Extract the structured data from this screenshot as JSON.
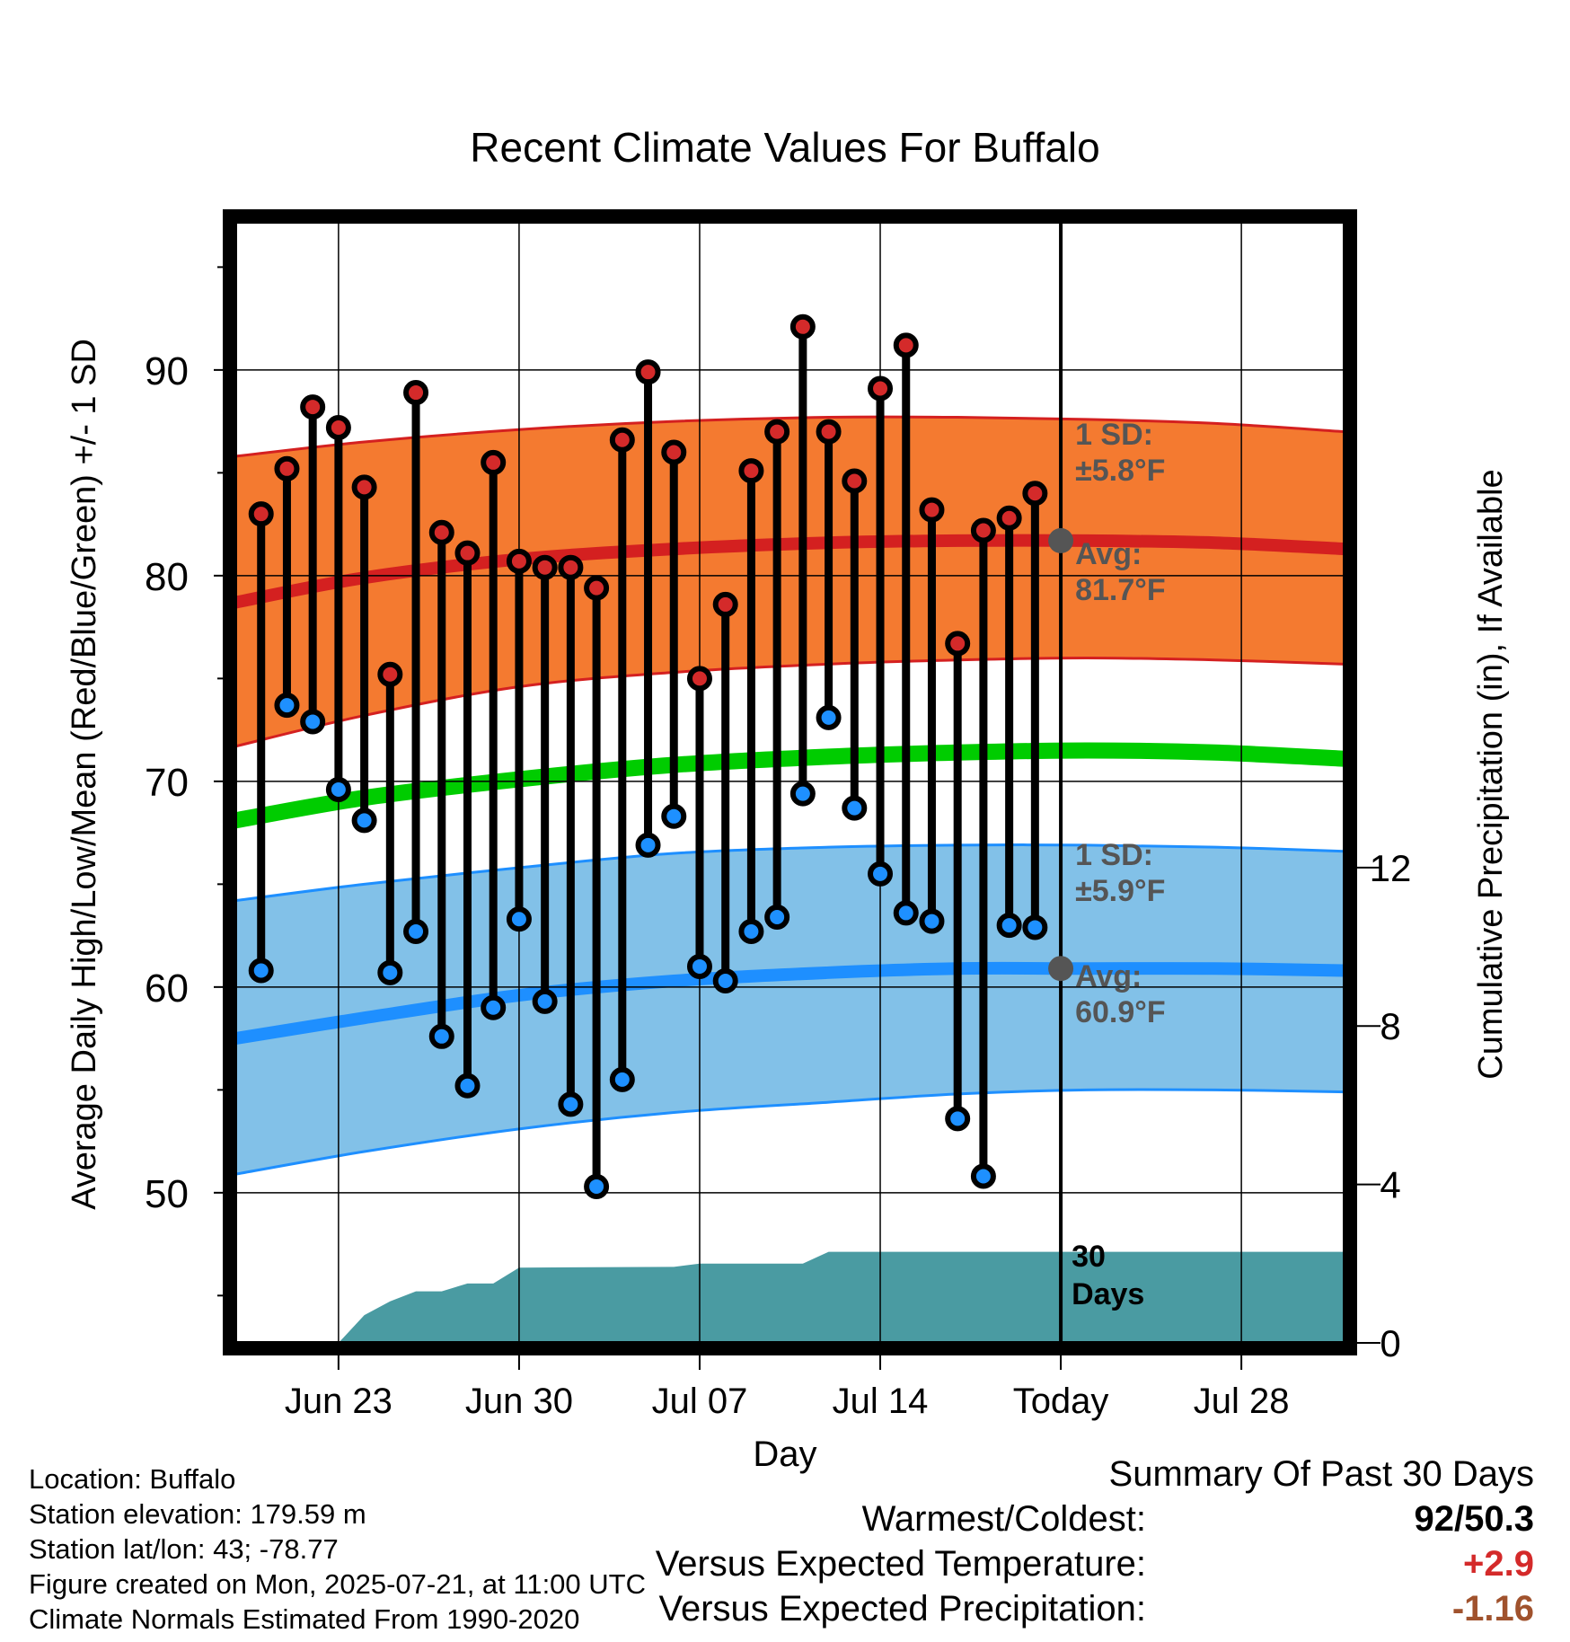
{
  "chart_data": {
    "type": "line",
    "title": "Recent Climate Values For Buffalo",
    "xlabel": "Day",
    "ylabel": "Average Daily High/Low/Mean (Red/Blue/Green) +/- 1 SD",
    "y2label": "Cumulative Precipitation (in), If Available",
    "ylim": [
      42.7,
      97.2
    ],
    "y2lim": [
      0,
      28.3
    ],
    "yticks": [
      "50",
      "60",
      "70",
      "80",
      "90"
    ],
    "y2ticks": [
      "0",
      "4",
      "8",
      "12"
    ],
    "xlim": [
      "2025-06-19",
      "2025-08-01"
    ],
    "xticks": [
      {
        "date": "2025-06-23",
        "label": "Jun 23"
      },
      {
        "date": "2025-06-30",
        "label": "Jun 30"
      },
      {
        "date": "2025-07-07",
        "label": "Jul 07"
      },
      {
        "date": "2025-07-14",
        "label": "Jul 14"
      },
      {
        "date": "2025-07-21",
        "label": "Today"
      },
      {
        "date": "2025-07-28",
        "label": "Jul 28"
      }
    ],
    "grid": true,
    "today": "2025-07-21",
    "colors": {
      "high_band": "#f47a30",
      "high_avg": "#d42020",
      "low_band": "#82c1e8",
      "low_avg": "#1e8fff",
      "mean": "#00cc00",
      "precip": "#4a9ba2",
      "high_marker": "#d42a2a",
      "low_marker": "#1e90ff",
      "annotation": "#555555"
    },
    "normals": {
      "dates": [
        "2025-06-19",
        "2025-06-24",
        "2025-06-30",
        "2025-07-06",
        "2025-07-12",
        "2025-07-17",
        "2025-07-22",
        "2025-07-27",
        "2025-08-01"
      ],
      "high_avg": [
        78.7,
        79.9,
        80.8,
        81.3,
        81.6,
        81.7,
        81.7,
        81.6,
        81.3
      ],
      "high_sd_upper": [
        85.8,
        86.5,
        87.1,
        87.5,
        87.7,
        87.7,
        87.6,
        87.4,
        87.0
      ],
      "high_sd_lower": [
        71.7,
        73.2,
        74.6,
        75.3,
        75.7,
        75.9,
        76.0,
        75.9,
        75.7
      ],
      "mean": [
        68.1,
        69.2,
        70.1,
        70.8,
        71.2,
        71.4,
        71.5,
        71.4,
        71.1
      ],
      "low_avg": [
        57.5,
        58.5,
        59.6,
        60.3,
        60.7,
        60.9,
        60.9,
        60.9,
        60.8
      ],
      "low_sd_upper": [
        64.2,
        65.0,
        65.8,
        66.5,
        66.8,
        66.9,
        66.9,
        66.8,
        66.6
      ],
      "low_sd_lower": [
        50.9,
        52.0,
        53.1,
        53.9,
        54.4,
        54.8,
        55.0,
        55.0,
        54.9
      ]
    },
    "series": [
      {
        "name": "High",
        "x": [
          "2025-06-20",
          "2025-06-21",
          "2025-06-22",
          "2025-06-23",
          "2025-06-24",
          "2025-06-25",
          "2025-06-26",
          "2025-06-27",
          "2025-06-28",
          "2025-06-29",
          "2025-06-30",
          "2025-07-01",
          "2025-07-02",
          "2025-07-03",
          "2025-07-04",
          "2025-07-05",
          "2025-07-06",
          "2025-07-07",
          "2025-07-08",
          "2025-07-09",
          "2025-07-10",
          "2025-07-11",
          "2025-07-12",
          "2025-07-13",
          "2025-07-14",
          "2025-07-15",
          "2025-07-16",
          "2025-07-17",
          "2025-07-18",
          "2025-07-19",
          "2025-07-20"
        ],
        "values": [
          83,
          85.2,
          88.2,
          87.2,
          84.3,
          75.2,
          88.9,
          82.1,
          81.1,
          85.5,
          80.7,
          80.4,
          80.4,
          79.4,
          86.6,
          89.9,
          86.0,
          75.0,
          78.6,
          85.1,
          87.0,
          92.1,
          87.0,
          84.6,
          89.1,
          91.2,
          83.2,
          76.7,
          82.2,
          82.8,
          84.0
        ]
      },
      {
        "name": "Low",
        "x": [
          "2025-06-20",
          "2025-06-21",
          "2025-06-22",
          "2025-06-23",
          "2025-06-24",
          "2025-06-25",
          "2025-06-26",
          "2025-06-27",
          "2025-06-28",
          "2025-06-29",
          "2025-06-30",
          "2025-07-01",
          "2025-07-02",
          "2025-07-03",
          "2025-07-04",
          "2025-07-05",
          "2025-07-06",
          "2025-07-07",
          "2025-07-08",
          "2025-07-09",
          "2025-07-10",
          "2025-07-11",
          "2025-07-12",
          "2025-07-13",
          "2025-07-14",
          "2025-07-15",
          "2025-07-16",
          "2025-07-17",
          "2025-07-18",
          "2025-07-19",
          "2025-07-20"
        ],
        "values": [
          60.8,
          73.7,
          72.9,
          69.6,
          68.1,
          60.7,
          62.7,
          57.6,
          55.2,
          59.0,
          63.3,
          59.3,
          54.3,
          50.3,
          55.5,
          66.9,
          68.3,
          61.0,
          60.3,
          62.7,
          63.4,
          69.4,
          73.1,
          68.7,
          65.5,
          63.6,
          63.2,
          53.6,
          50.8,
          63.0,
          62.9
        ]
      },
      {
        "name": "Cumulative Precipitation",
        "x": [
          "2025-06-23",
          "2025-06-24",
          "2025-06-25",
          "2025-06-26",
          "2025-06-27",
          "2025-06-28",
          "2025-06-29",
          "2025-06-30",
          "2025-07-06",
          "2025-07-07",
          "2025-07-11",
          "2025-07-12",
          "2025-08-01"
        ],
        "values": [
          0,
          0.7,
          1.05,
          1.3,
          1.3,
          1.5,
          1.5,
          1.9,
          1.92,
          2.0,
          2.0,
          2.3,
          2.3
        ]
      }
    ],
    "annotations": {
      "high_sd": {
        "line1": "1 SD:",
        "line2": "±5.8°F"
      },
      "high_avg": {
        "line1": "Avg:",
        "line2": "81.7°F",
        "value": 81.7
      },
      "low_sd": {
        "line1": "1 SD:",
        "line2": "±5.9°F"
      },
      "low_avg": {
        "line1": "Avg:",
        "line2": "60.9°F",
        "value": 60.9
      },
      "days": {
        "line1": "30",
        "line2": "Days"
      }
    }
  },
  "footer": {
    "location": "Location: Buffalo",
    "elevation": "Station elevation: 179.59 m",
    "latlon": "Station lat/lon: 43; -78.77",
    "created": "Figure created on Mon, 2025-07-21, at 11:00 UTC",
    "normals": "Climate Normals Estimated From 1990-2020"
  },
  "summary": {
    "title": "Summary Of Past 30 Days",
    "warmest_coldest_label": "Warmest/Coldest:",
    "warmest_coldest_value": "92/50.3",
    "temp_label": "Versus Expected Temperature:",
    "temp_value": "+2.9",
    "temp_color": "#d42a2a",
    "precip_label": "Versus Expected Precipitation:",
    "precip_value": "-1.16",
    "precip_color": "#a0522d"
  }
}
